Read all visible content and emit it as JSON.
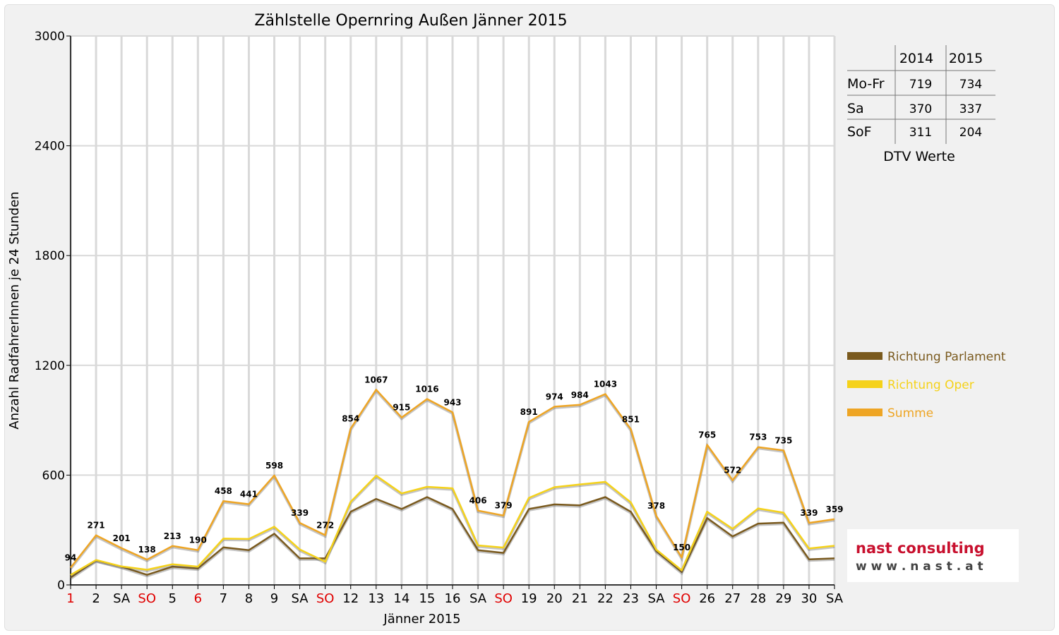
{
  "chart_data": {
    "type": "line",
    "title": "Zählstelle Opernring Außen Jänner 2015",
    "xlabel": "Jänner 2015",
    "ylabel": "Anzahl RadfahrerInnen je 24 Stunden",
    "ylim": [
      0,
      3000
    ],
    "yticks": [
      "0",
      "600",
      "1200",
      "1800",
      "2400",
      "3000"
    ],
    "grid": true,
    "legend_position": "right",
    "categories": [
      "1",
      "2",
      "SA",
      "SO",
      "5",
      "6",
      "7",
      "8",
      "9",
      "SA",
      "SO",
      "12",
      "13",
      "14",
      "15",
      "16",
      "SA",
      "SO",
      "19",
      "20",
      "21",
      "22",
      "23",
      "SA",
      "SO",
      "26",
      "27",
      "28",
      "29",
      "30",
      "SA"
    ],
    "red_categories": [
      0,
      3,
      5,
      10,
      17,
      24
    ],
    "series": [
      {
        "name": "Richtung Parlament",
        "color": "#7a5a1e",
        "values": [
          40,
          135,
          100,
          55,
          100,
          90,
          205,
          190,
          280,
          145,
          145,
          400,
          470,
          415,
          480,
          415,
          190,
          175,
          415,
          440,
          435,
          480,
          400,
          185,
          70,
          365,
          265,
          335,
          340,
          140,
          145
        ]
      },
      {
        "name": "Richtung Oper",
        "color": "#f5d21a",
        "values": [
          54,
          136,
          101,
          83,
          113,
          100,
          253,
          251,
          318,
          194,
          127,
          454,
          597,
          500,
          536,
          528,
          216,
          204,
          476,
          534,
          549,
          563,
          451,
          193,
          80,
          400,
          307,
          418,
          395,
          199,
          214
        ]
      },
      {
        "name": "Summe",
        "color": "#eea524",
        "values": [
          94,
          271,
          201,
          138,
          213,
          190,
          458,
          441,
          598,
          339,
          272,
          854,
          1067,
          915,
          1016,
          943,
          406,
          379,
          891,
          974,
          984,
          1043,
          851,
          378,
          150,
          765,
          572,
          753,
          735,
          339,
          359
        ]
      }
    ],
    "data_labels": [
      "94",
      "271",
      "201",
      "138",
      "213",
      "190",
      "458",
      "441",
      "598",
      "339",
      "272",
      "854",
      "1067",
      "915",
      "1016",
      "943",
      "406",
      "379",
      "891",
      "974",
      "984",
      "1043",
      "851",
      "378",
      "150",
      "765",
      "572",
      "753",
      "735",
      "339",
      "359"
    ]
  },
  "dtv_table": {
    "headers": [
      "2014",
      "2015"
    ],
    "rows": [
      {
        "label": "Mo-Fr",
        "v2014": "719",
        "v2015": "734"
      },
      {
        "label": "Sa",
        "v2014": "370",
        "v2015": "337"
      },
      {
        "label": "SoF",
        "v2014": "311",
        "v2015": "204"
      }
    ],
    "caption": "DTV Werte"
  },
  "logo": {
    "line1": "nast consulting",
    "line2": "w w w . n a s t . a t"
  }
}
